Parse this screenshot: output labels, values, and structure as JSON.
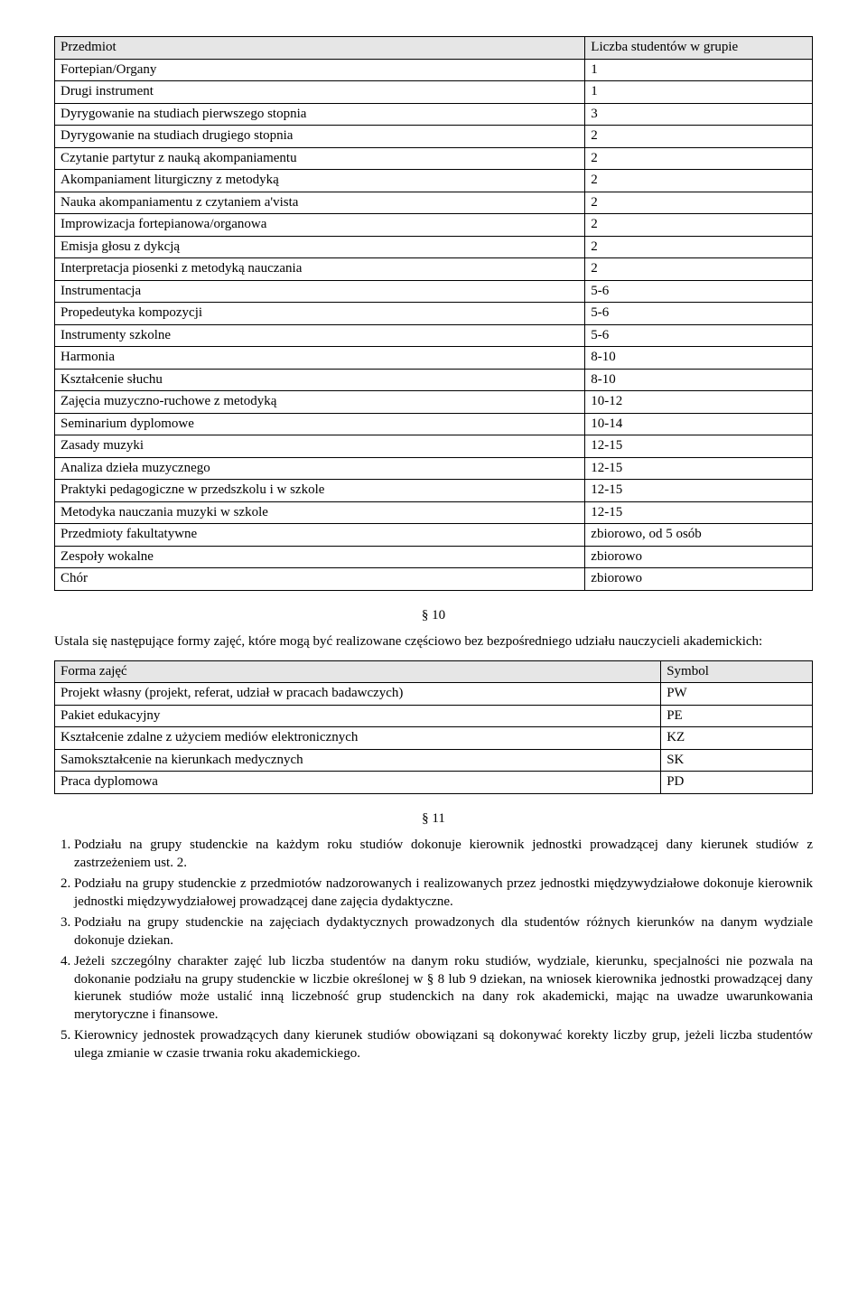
{
  "table1": {
    "header": {
      "col1": "Przedmiot",
      "col2": "Liczba studentów w grupie"
    },
    "rows": [
      {
        "c1": "Fortepian/Organy",
        "c2": "1"
      },
      {
        "c1": "Drugi instrument",
        "c2": "1"
      },
      {
        "c1": "Dyrygowanie na studiach pierwszego stopnia",
        "c2": "3"
      },
      {
        "c1": "Dyrygowanie na studiach drugiego stopnia",
        "c2": "2"
      },
      {
        "c1": "Czytanie partytur z nauką akompaniamentu",
        "c2": "2"
      },
      {
        "c1": "Akompaniament liturgiczny z metodyką",
        "c2": "2"
      },
      {
        "c1": "Nauka akompaniamentu z czytaniem a'vista",
        "c2": "2"
      },
      {
        "c1": "Improwizacja fortepianowa/organowa",
        "c2": "2"
      },
      {
        "c1": "Emisja głosu z dykcją",
        "c2": "2"
      },
      {
        "c1": "Interpretacja piosenki z metodyką nauczania",
        "c2": "2"
      },
      {
        "c1": "Instrumentacja",
        "c2": "5-6"
      },
      {
        "c1": "Propedeutyka kompozycji",
        "c2": "5-6"
      },
      {
        "c1": "Instrumenty szkolne",
        "c2": "5-6"
      },
      {
        "c1": "Harmonia",
        "c2": "8-10"
      },
      {
        "c1": "Kształcenie słuchu",
        "c2": "8-10"
      },
      {
        "c1": "Zajęcia muzyczno-ruchowe z metodyką",
        "c2": "10-12"
      },
      {
        "c1": "Seminarium dyplomowe",
        "c2": "10-14"
      },
      {
        "c1": "Zasady muzyki",
        "c2": "12-15"
      },
      {
        "c1": "Analiza dzieła muzycznego",
        "c2": "12-15"
      },
      {
        "c1": "Praktyki pedagogiczne w przedszkolu i w szkole",
        "c2": "12-15"
      },
      {
        "c1": "Metodyka nauczania muzyki w szkole",
        "c2": "12-15"
      },
      {
        "c1": "Przedmioty fakultatywne",
        "c2": "zbiorowo, od 5 osób"
      },
      {
        "c1": "Zespoły wokalne",
        "c2": "zbiorowo"
      },
      {
        "c1": "Chór",
        "c2": "zbiorowo"
      }
    ]
  },
  "section10": {
    "label": "§ 10",
    "intro": "Ustala się następujące formy zajęć, które mogą być realizowane częściowo bez bezpośredniego udziału nauczycieli akademickich:"
  },
  "table2": {
    "header": {
      "col1": "Forma zajęć",
      "col2": "Symbol"
    },
    "rows": [
      {
        "c1": "Projekt własny (projekt, referat, udział w pracach badawczych)",
        "c2": "PW"
      },
      {
        "c1": "Pakiet edukacyjny",
        "c2": "PE"
      },
      {
        "c1": "Kształcenie zdalne z użyciem mediów elektronicznych",
        "c2": "KZ"
      },
      {
        "c1": "Samokształcenie na kierunkach medycznych",
        "c2": "SK"
      },
      {
        "c1": "Praca dyplomowa",
        "c2": "PD"
      }
    ]
  },
  "section11": {
    "label": "§ 11",
    "items": [
      "Podziału na grupy studenckie na każdym roku studiów dokonuje kierownik jednostki prowadzącej dany kierunek studiów z zastrzeżeniem ust. 2.",
      "Podziału na grupy studenckie z przedmiotów nadzorowanych i realizowanych przez jednostki międzywydziałowe dokonuje kierownik jednostki międzywydziałowej prowadzącej dane zajęcia dydaktyczne.",
      "Podziału na grupy studenckie na zajęciach dydaktycznych prowadzonych dla studentów różnych kierunków na danym wydziale dokonuje dziekan.",
      "Jeżeli szczególny charakter zajęć lub liczba studentów na danym roku studiów, wydziale, kierunku, specjalności nie pozwala na dokonanie podziału na grupy studenckie w liczbie określonej w § 8 lub 9 dziekan, na wniosek kierownika jednostki prowadzącej dany kierunek studiów może ustalić inną liczebność grup studenckich na dany rok akademicki, mając na uwadze uwarunkowania merytoryczne i finansowe.",
      "Kierownicy jednostek prowadzących dany kierunek studiów obowiązani są dokonywać korekty liczby grup, jeżeli liczba studentów ulega zmianie w czasie trwania roku akademickiego."
    ]
  }
}
